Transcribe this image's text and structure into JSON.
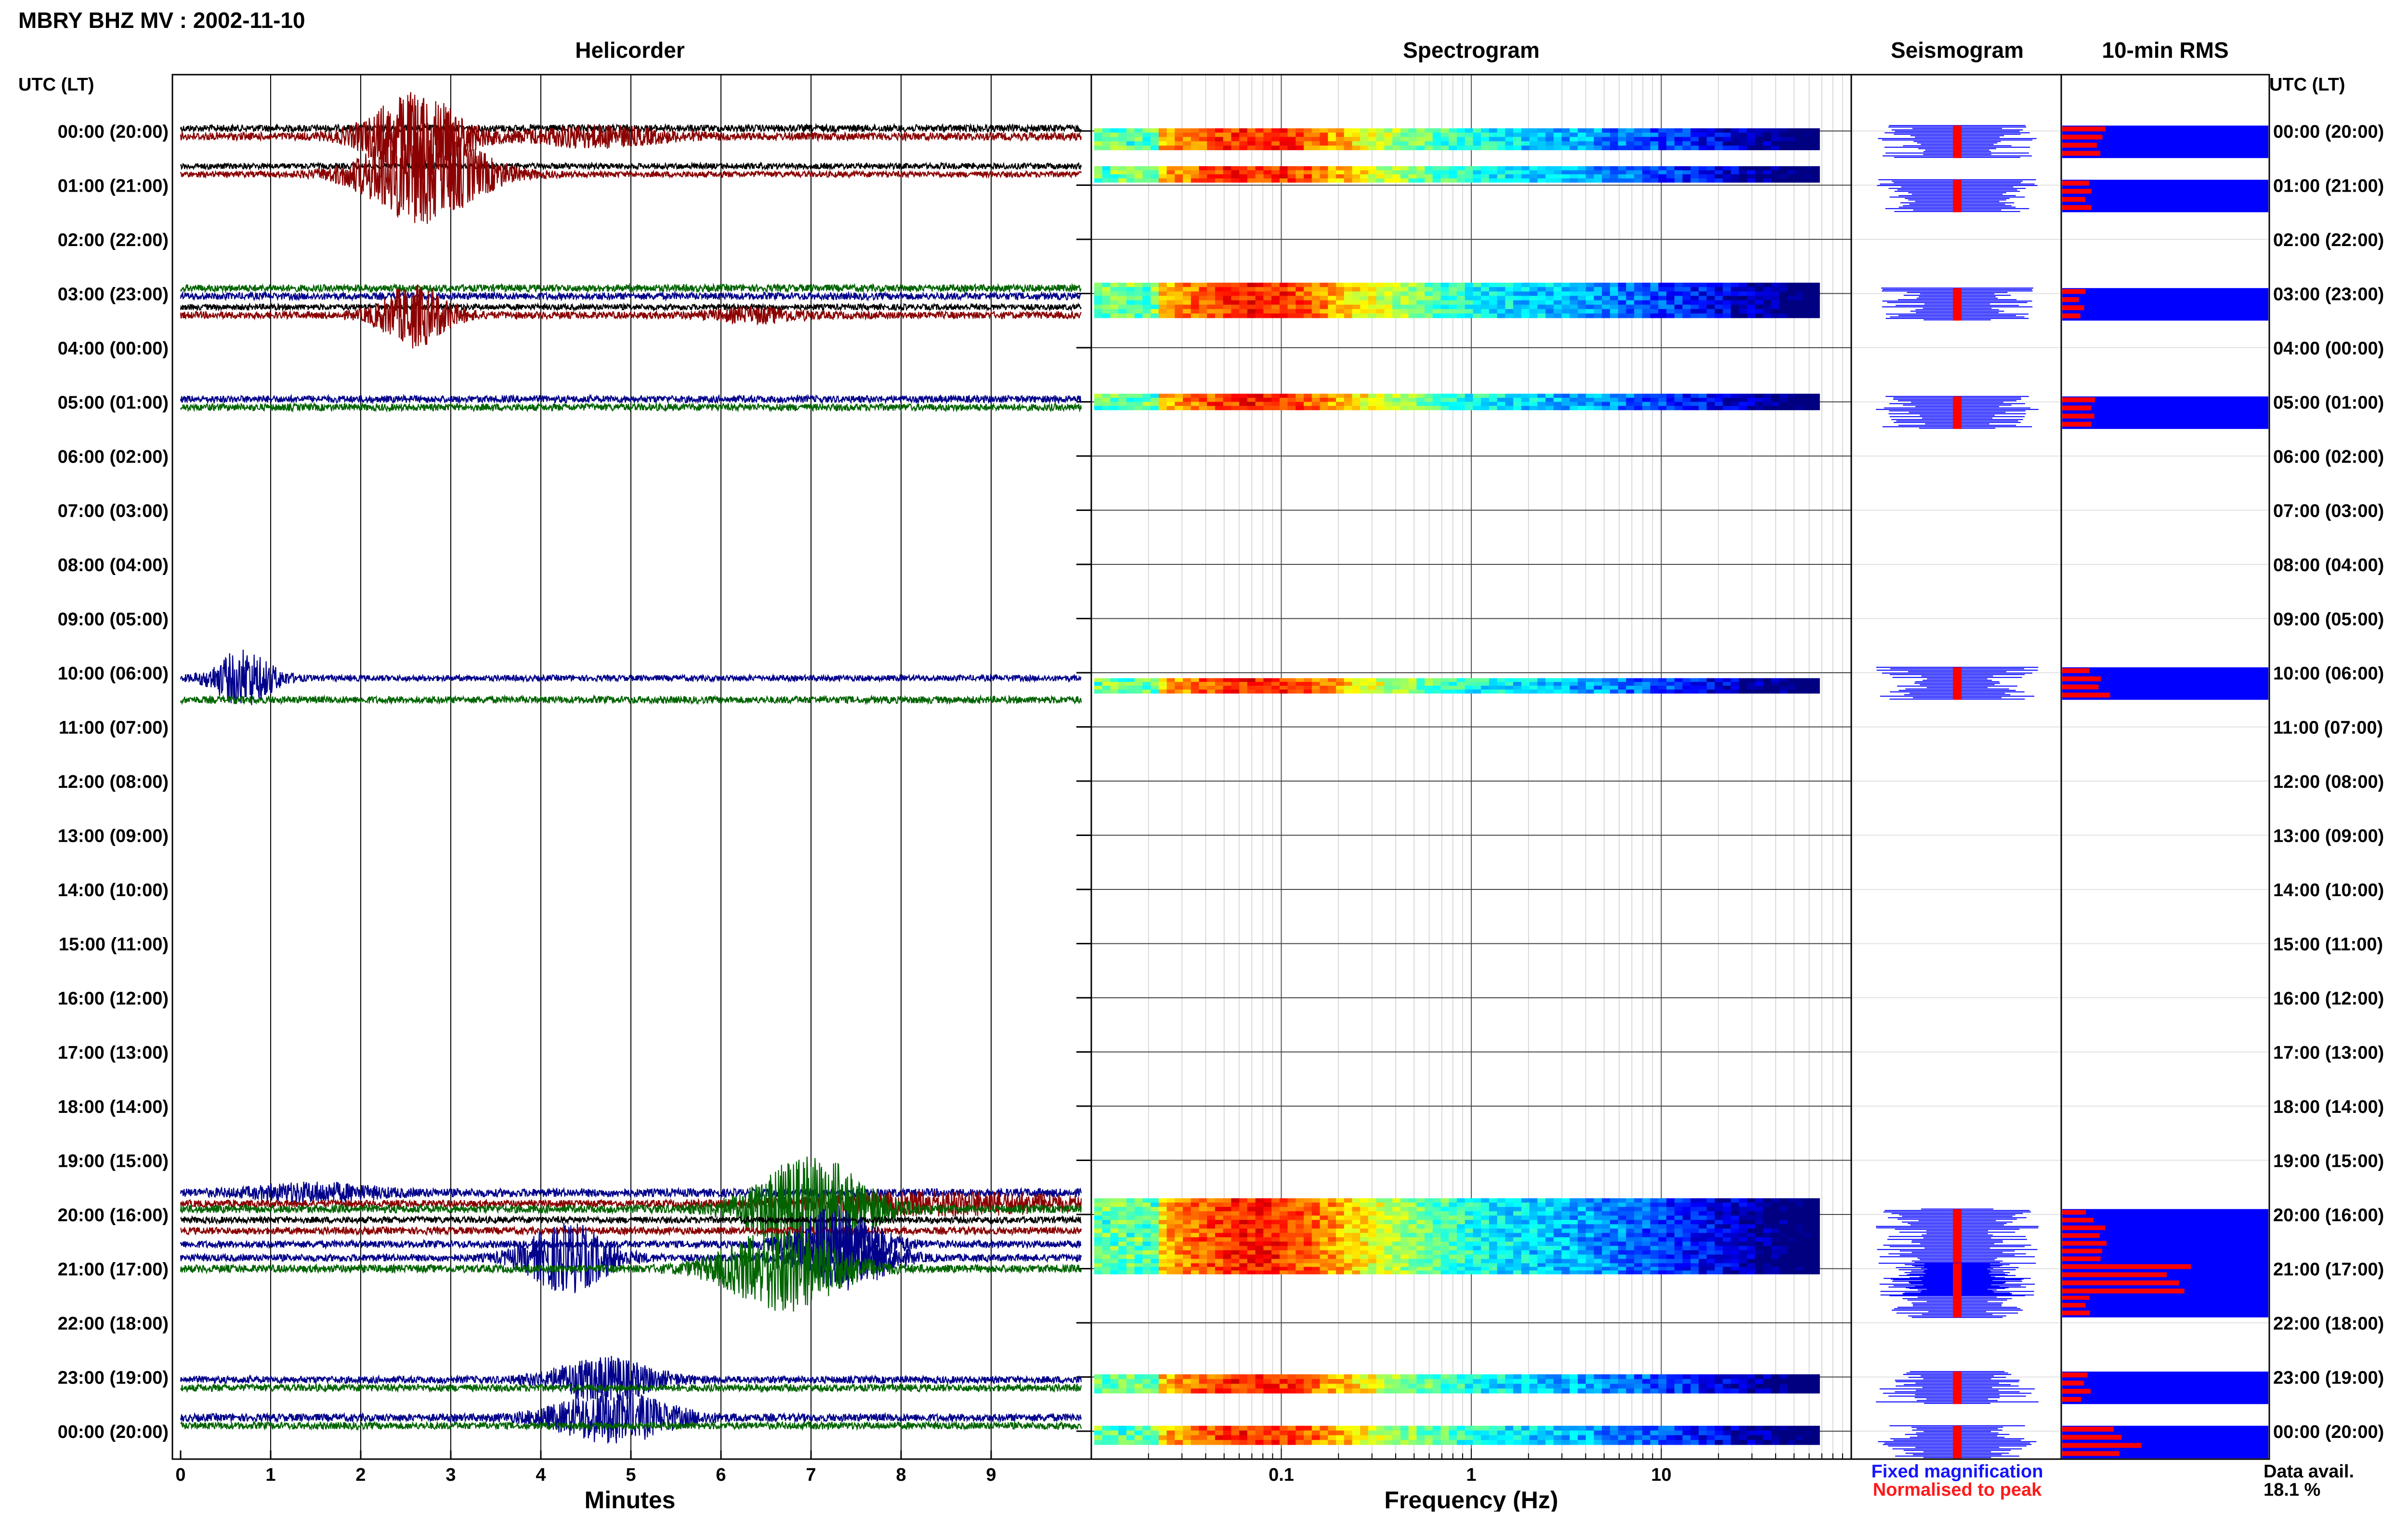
{
  "header": {
    "station_title": "MBRY BHZ MV : 2002-11-10",
    "utc_label_left": "UTC (LT)",
    "utc_label_right": "UTC (LT)"
  },
  "panels": {
    "helicorder": "Helicorder",
    "spectrogram": "Spectrogram",
    "seismogram": "Seismogram",
    "rms": "10-min RMS"
  },
  "row_labels": [
    "00:00 (20:00)",
    "01:00 (21:00)",
    "02:00 (22:00)",
    "03:00 (23:00)",
    "04:00 (00:00)",
    "05:00 (01:00)",
    "06:00 (02:00)",
    "07:00 (03:00)",
    "08:00 (04:00)",
    "09:00 (05:00)",
    "10:00 (06:00)",
    "11:00 (07:00)",
    "12:00 (08:00)",
    "13:00 (09:00)",
    "14:00 (10:00)",
    "15:00 (11:00)",
    "16:00 (12:00)",
    "17:00 (13:00)",
    "18:00 (14:00)",
    "19:00 (15:00)",
    "20:00 (16:00)",
    "21:00 (17:00)",
    "22:00 (18:00)",
    "23:00 (19:00)",
    "00:00 (20:00)"
  ],
  "legend": {
    "fixed": "Fixed magnification",
    "fixed_color": "#1515ff",
    "normalised": "Normalised to peak",
    "normalised_color": "#ff1a1a"
  },
  "availability": {
    "label": "Data avail.",
    "value": "18.1 %"
  },
  "colors": {
    "trace_black": "#000000",
    "trace_red": "#8b0000",
    "trace_blue": "#00008b",
    "trace_green": "#006400",
    "rms_fixed": "#0000ff",
    "rms_norm": "#ff0000"
  },
  "chart_data": {
    "type": "heatmap",
    "helicorder": {
      "xlabel": "Minutes",
      "x_ticks": [
        "0",
        "1",
        "2",
        "3",
        "4",
        "5",
        "6",
        "7",
        "8",
        "9"
      ],
      "xlim": [
        0,
        10
      ],
      "rows": [
        {
          "hour": 0,
          "offset": -0.05,
          "color": "#000000",
          "amp": 0.12,
          "bursts": []
        },
        {
          "hour": 0,
          "offset": 0.1,
          "color": "#8b0000",
          "amp": 0.13,
          "bursts": [
            {
              "t": 2.6,
              "w": 0.55,
              "a": 1.4
            },
            {
              "t": 4.6,
              "w": 0.8,
              "a": 0.3
            }
          ]
        },
        {
          "hour": 1,
          "offset": -0.35,
          "color": "#000000",
          "amp": 0.1,
          "bursts": []
        },
        {
          "hour": 1,
          "offset": -0.2,
          "color": "#8b0000",
          "amp": 0.1,
          "bursts": [
            {
              "t": 2.7,
              "w": 0.7,
              "a": 1.6
            }
          ]
        },
        {
          "hour": 3,
          "offset": -0.1,
          "color": "#006400",
          "amp": 0.12,
          "bursts": []
        },
        {
          "hour": 3,
          "offset": 0.05,
          "color": "#00008b",
          "amp": 0.12,
          "bursts": []
        },
        {
          "hour": 3,
          "offset": 0.25,
          "color": "#000000",
          "amp": 0.1,
          "bursts": []
        },
        {
          "hour": 3,
          "offset": 0.4,
          "color": "#8b0000",
          "amp": 0.12,
          "bursts": [
            {
              "t": 2.6,
              "w": 0.4,
              "a": 1.0
            },
            {
              "t": 6.4,
              "w": 0.5,
              "a": 0.2
            }
          ]
        },
        {
          "hour": 5,
          "offset": -0.05,
          "color": "#00008b",
          "amp": 0.12,
          "bursts": []
        },
        {
          "hour": 5,
          "offset": 0.1,
          "color": "#006400",
          "amp": 0.12,
          "bursts": []
        },
        {
          "hour": 10,
          "offset": 0.1,
          "color": "#00008b",
          "amp": 0.1,
          "bursts": [
            {
              "t": 0.7,
              "w": 0.35,
              "a": 0.9
            }
          ]
        },
        {
          "hour": 10,
          "offset": 0.5,
          "color": "#006400",
          "amp": 0.12,
          "bursts": []
        },
        {
          "hour": 19,
          "offset": 0.6,
          "color": "#00008b",
          "amp": 0.14,
          "bursts": [
            {
              "t": 1.5,
              "w": 0.7,
              "a": 0.25
            }
          ]
        },
        {
          "hour": 19,
          "offset": 0.8,
          "color": "#8b0000",
          "amp": 0.12,
          "bursts": [
            {
              "t": 8.5,
              "w": 1.6,
              "a": 0.35
            }
          ]
        },
        {
          "hour": 20,
          "offset": -0.1,
          "color": "#006400",
          "amp": 0.13,
          "bursts": [
            {
              "t": 7.0,
              "w": 0.7,
              "a": 1.7
            }
          ]
        },
        {
          "hour": 20,
          "offset": 0.1,
          "color": "#000000",
          "amp": 0.11,
          "bursts": []
        },
        {
          "hour": 20,
          "offset": 0.3,
          "color": "#8b0000",
          "amp": 0.12,
          "bursts": []
        },
        {
          "hour": 20,
          "offset": 0.55,
          "color": "#00008b",
          "amp": 0.12,
          "bursts": [
            {
              "t": 7.3,
              "w": 0.5,
              "a": 1.2
            }
          ]
        },
        {
          "hour": 21,
          "offset": -0.2,
          "color": "#00008b",
          "amp": 0.12,
          "bursts": [
            {
              "t": 4.3,
              "w": 0.5,
              "a": 1.1
            },
            {
              "t": 7.4,
              "w": 0.5,
              "a": 1.0
            }
          ]
        },
        {
          "hour": 21,
          "offset": 0.0,
          "color": "#006400",
          "amp": 0.13,
          "bursts": [
            {
              "t": 6.7,
              "w": 0.7,
              "a": 1.4
            }
          ]
        },
        {
          "hour": 23,
          "offset": 0.05,
          "color": "#00008b",
          "amp": 0.12,
          "bursts": [
            {
              "t": 4.7,
              "w": 0.6,
              "a": 0.7
            }
          ]
        },
        {
          "hour": 23,
          "offset": 0.2,
          "color": "#006400",
          "amp": 0.12,
          "bursts": []
        },
        {
          "hour": 23,
          "offset": 0.75,
          "color": "#00008b",
          "amp": 0.13,
          "bursts": [
            {
              "t": 4.8,
              "w": 0.7,
              "a": 0.8
            }
          ]
        },
        {
          "hour": 23,
          "offset": 0.9,
          "color": "#006400",
          "amp": 0.12,
          "bursts": []
        }
      ]
    },
    "spectrogram": {
      "xlabel": "Frequency (Hz)",
      "x_ticks": [
        "0.1",
        "1",
        "10"
      ],
      "x_tick_values": [
        0.1,
        1,
        10
      ],
      "xlim": [
        0.01,
        100
      ],
      "active_hours": [
        0,
        1,
        3,
        5,
        10,
        20,
        21,
        23,
        24
      ]
    },
    "seismogram": {
      "active_hours": [
        0,
        1,
        3,
        5,
        10,
        20,
        21,
        23,
        24
      ]
    },
    "rms": {
      "active_hours": [
        0,
        1,
        3,
        5,
        10,
        20,
        21,
        23,
        24
      ],
      "normalised_fraction": [
        0.25,
        0.22,
        0.15,
        0.17,
        0.25,
        0.22,
        0.65,
        0.18,
        0.4
      ]
    }
  }
}
